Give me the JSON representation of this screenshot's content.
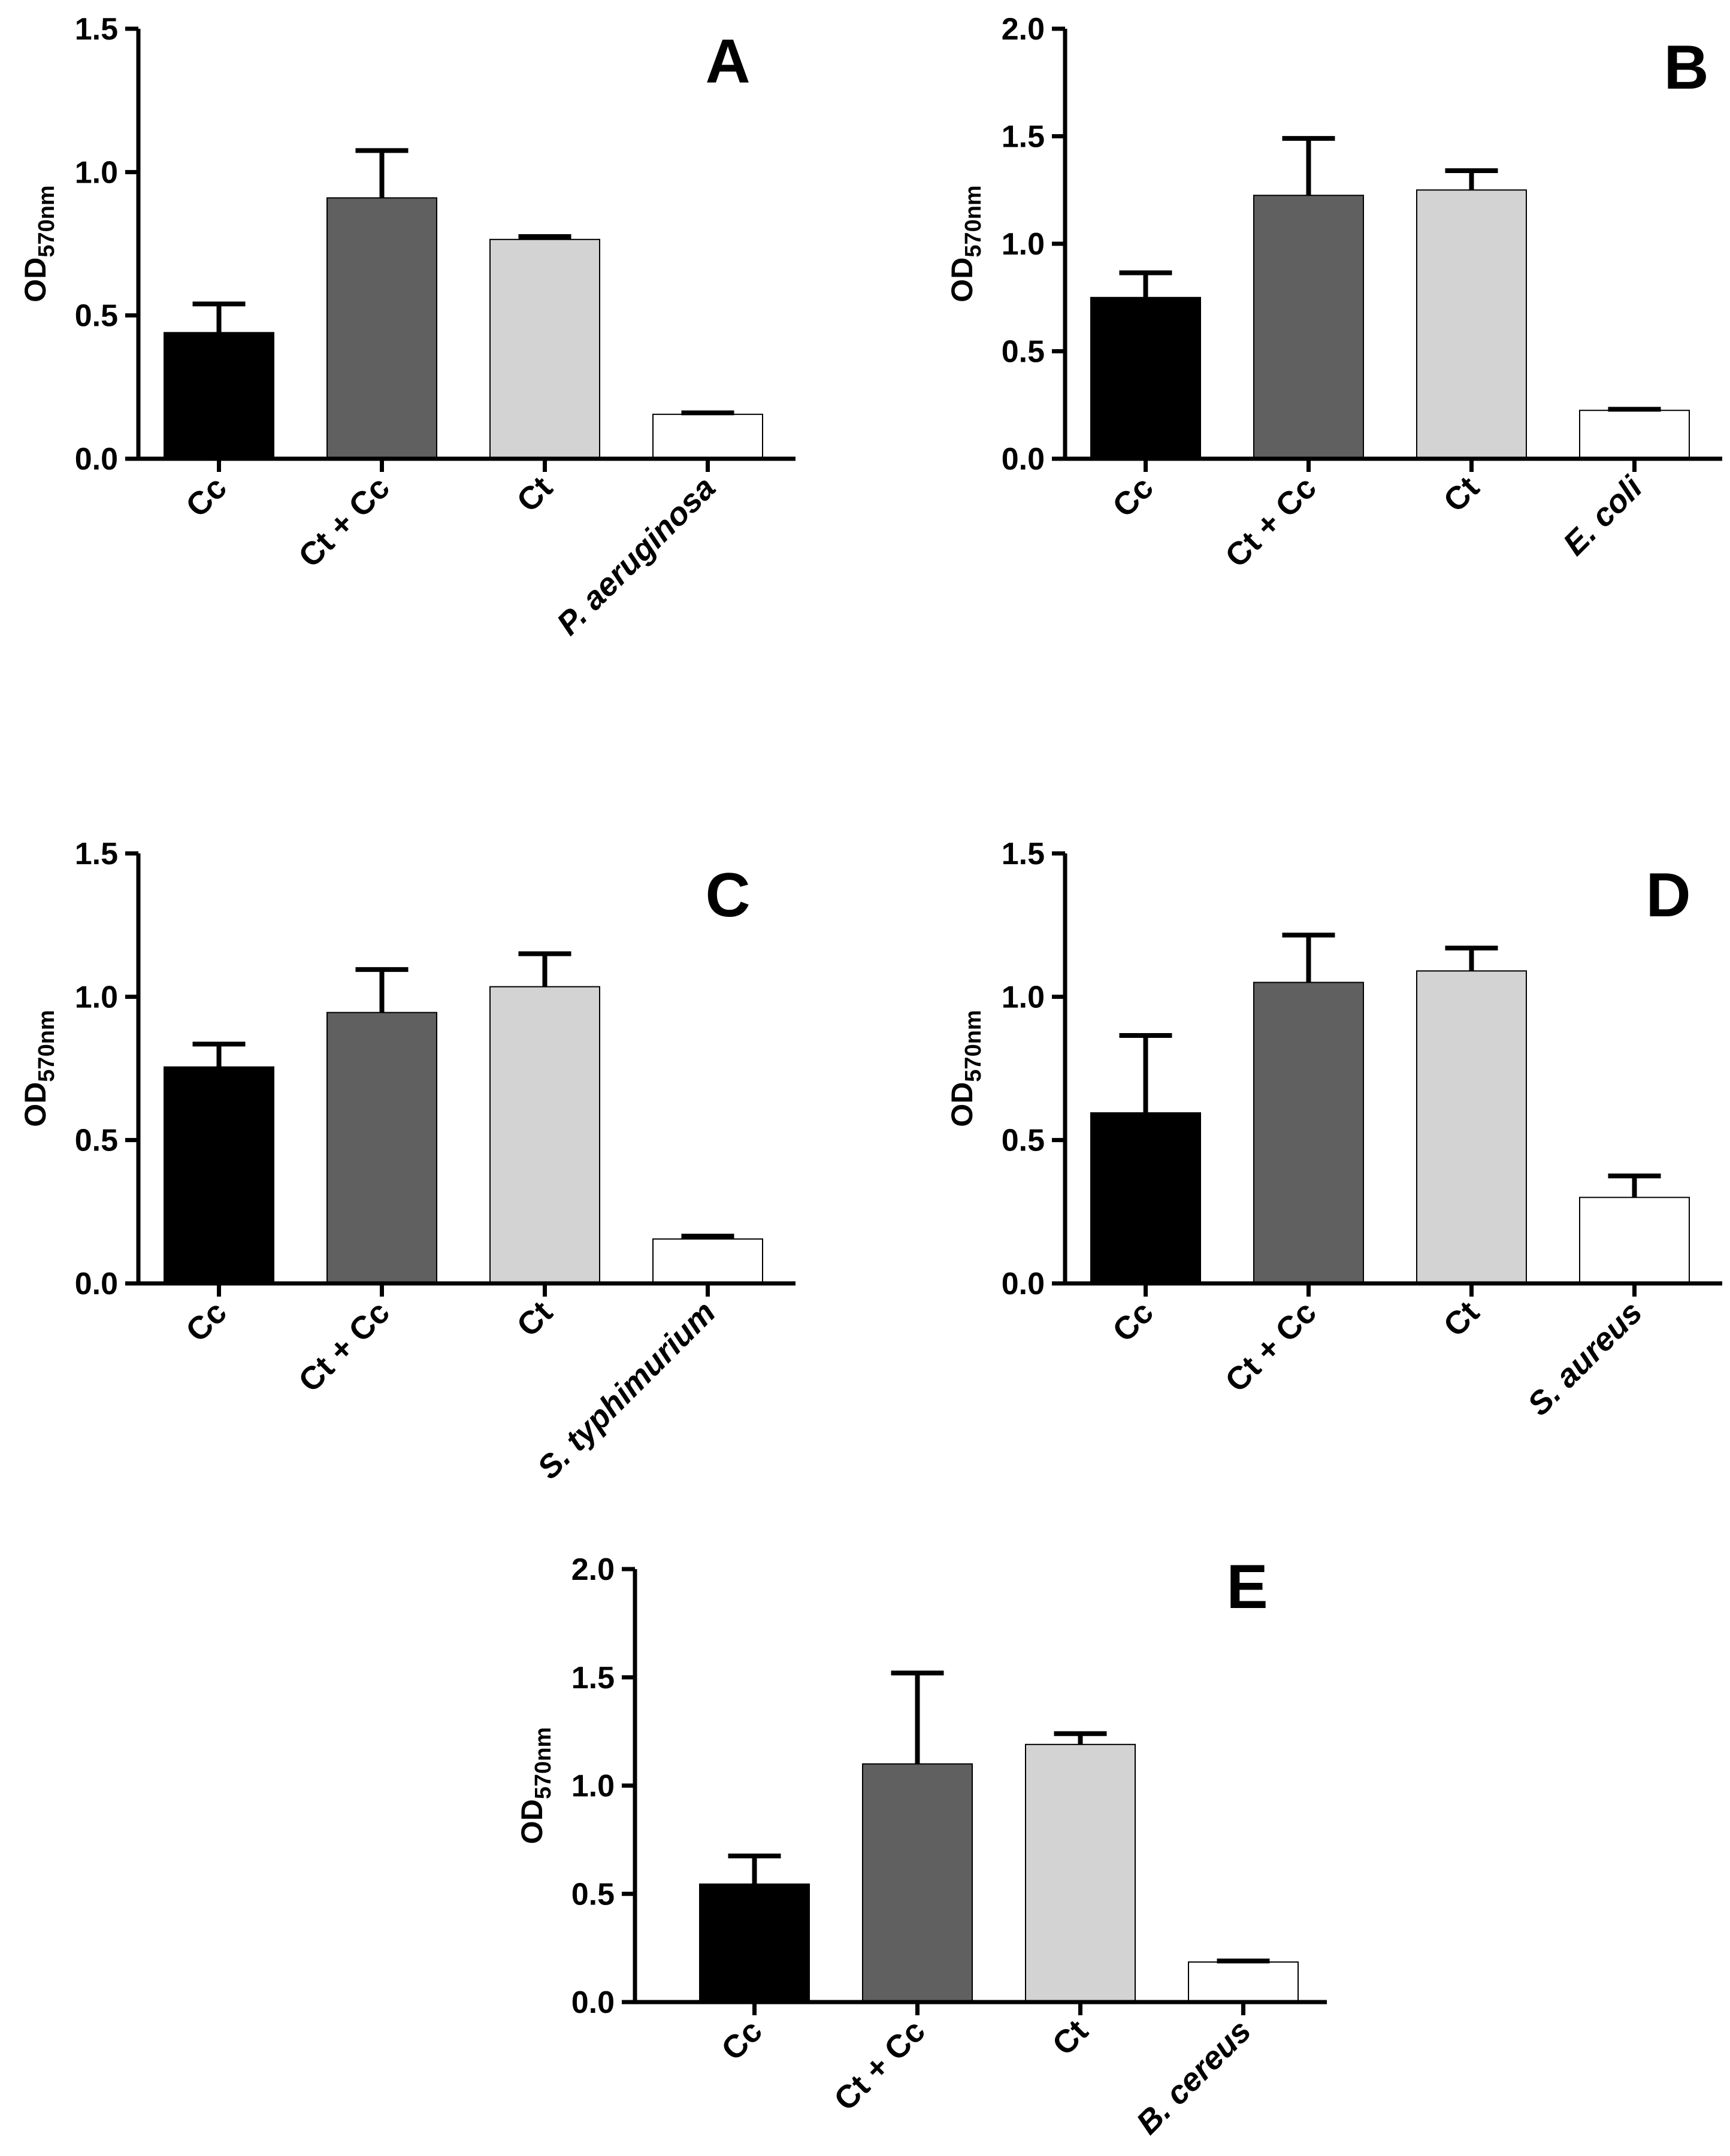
{
  "chart_data": [
    {
      "type": "bar",
      "panel_label": "A",
      "ylabel": "OD",
      "ylabel_subscript": "570nm",
      "ylim": [
        0,
        1.5
      ],
      "yticks": [
        "0.0",
        "0.5",
        "1.0",
        "1.5"
      ],
      "categories": [
        "Cc",
        "Ct + Cc",
        "Ct",
        "P. aeruginosa"
      ],
      "italic_categories": [
        false,
        false,
        false,
        true
      ],
      "values": [
        0.44,
        0.91,
        0.765,
        0.155
      ],
      "errors": [
        0.1,
        0.165,
        0.01,
        0.005
      ],
      "colors": [
        "#000000",
        "#606060",
        "#d3d3d3",
        "#ffffff"
      ]
    },
    {
      "type": "bar",
      "panel_label": "B",
      "ylabel": "OD",
      "ylabel_subscript": "570nm",
      "ylim": [
        0,
        2.0
      ],
      "yticks": [
        "0.0",
        "0.5",
        "1.0",
        "1.5",
        "2.0"
      ],
      "categories": [
        "Cc",
        "Ct + Cc",
        "Ct",
        "E. coli"
      ],
      "italic_categories": [
        false,
        false,
        false,
        true
      ],
      "values": [
        0.75,
        1.225,
        1.25,
        0.225
      ],
      "errors": [
        0.115,
        0.265,
        0.09,
        0.005
      ],
      "colors": [
        "#000000",
        "#606060",
        "#d3d3d3",
        "#ffffff"
      ]
    },
    {
      "type": "bar",
      "panel_label": "C",
      "ylabel": "OD",
      "ylabel_subscript": "570nm",
      "ylim": [
        0,
        1.5
      ],
      "yticks": [
        "0.0",
        "0.5",
        "1.0",
        "1.5"
      ],
      "categories": [
        "Cc",
        "Ct + Cc",
        "Ct",
        "S. typhimurium"
      ],
      "italic_categories": [
        false,
        false,
        false,
        true
      ],
      "values": [
        0.755,
        0.945,
        1.035,
        0.155
      ],
      "errors": [
        0.08,
        0.15,
        0.115,
        0.01
      ],
      "colors": [
        "#000000",
        "#606060",
        "#d3d3d3",
        "#ffffff"
      ]
    },
    {
      "type": "bar",
      "panel_label": "D",
      "ylabel": "OD",
      "ylabel_subscript": "570nm",
      "ylim": [
        0,
        1.5
      ],
      "yticks": [
        "0.0",
        "0.5",
        "1.0",
        "1.5"
      ],
      "categories": [
        "Cc",
        "Ct + Cc",
        "Ct",
        "S. aureus"
      ],
      "italic_categories": [
        false,
        false,
        false,
        true
      ],
      "values": [
        0.595,
        1.05,
        1.09,
        0.3
      ],
      "errors": [
        0.27,
        0.165,
        0.08,
        0.075
      ],
      "colors": [
        "#000000",
        "#606060",
        "#d3d3d3",
        "#ffffff"
      ]
    },
    {
      "type": "bar",
      "panel_label": "E",
      "ylabel": "OD",
      "ylabel_subscript": "570nm",
      "ylim": [
        0,
        2.0
      ],
      "yticks": [
        "0.0",
        "0.5",
        "1.0",
        "1.5",
        "2.0"
      ],
      "categories": [
        "Cc",
        "Ct + Cc",
        "Ct",
        "B. cereus"
      ],
      "italic_categories": [
        false,
        false,
        false,
        true
      ],
      "values": [
        0.545,
        1.1,
        1.19,
        0.185
      ],
      "errors": [
        0.13,
        0.42,
        0.05,
        0.005
      ],
      "colors": [
        "#000000",
        "#606060",
        "#d3d3d3",
        "#ffffff"
      ]
    }
  ]
}
